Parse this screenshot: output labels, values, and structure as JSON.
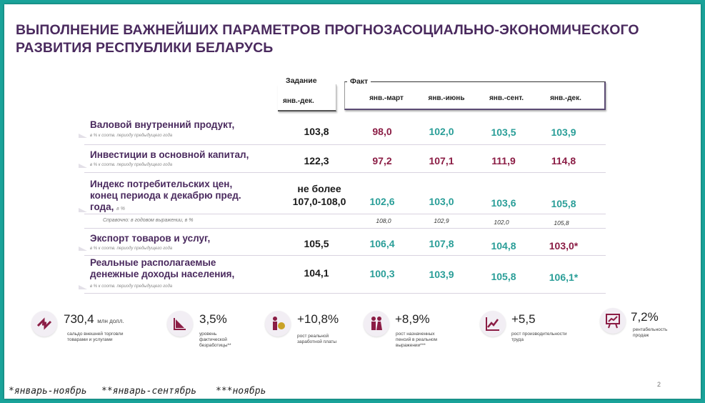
{
  "title": {
    "line1": "ВЫПОЛНЕНИЕ ВАЖНЕЙШИХ ПАРАМЕТРОВ ПРОГНОЗАСОЦИАЛЬНО-ЭКОНОМИЧЕСКОГО",
    "line2": "РАЗВИТИЯ РЕСПУБЛИКИ БЕЛАРУСЬ"
  },
  "header": {
    "task_label": "Задание",
    "task_period": "янв.-дек.",
    "fact_label": "Факт",
    "periods": [
      "янв.-март",
      "янв.-июнь",
      "янв.-сент.",
      "янв.-дек."
    ]
  },
  "rows": [
    {
      "title": "Валовой внутренний продукт,",
      "subtitle": "в % к соотв. периоду предыдущего года",
      "task": "103,8",
      "values": [
        "98,0",
        "102,0",
        "103,5",
        "103,9"
      ]
    },
    {
      "title": "Инвестиции в основной капитал,",
      "subtitle": "в % к соотв. периоду предыдущего года",
      "task": "122,3",
      "values": [
        "97,2",
        "107,1",
        "111,9",
        "114,8"
      ]
    },
    {
      "title_lines": [
        "Индекс потребительских цен,",
        "конец периода к декабрю пред.",
        "года,"
      ],
      "unit": "в %",
      "task_lines": [
        "не более",
        "107,0-108,0"
      ],
      "values": [
        "102,6",
        "103,0",
        "103,6",
        "105,8"
      ]
    },
    {
      "ref_label": "Справочно: в годовом выражении, в %",
      "values": [
        "108,0",
        "102,9",
        "102,0",
        "105,8"
      ]
    },
    {
      "title": "Экспорт товаров и услуг,",
      "subtitle": "в % к соотв. периоду предыдущего года",
      "task": "105,5",
      "values": [
        "106,4",
        "107,8",
        "104,8",
        "103,0*"
      ]
    },
    {
      "title_lines": [
        "Реальные располагаемые",
        "денежные доходы населения,"
      ],
      "subtitle": "в % к соотв. периоду предыдущего года",
      "task": "104,1",
      "values": [
        "100,3",
        "103,9",
        "105,8",
        "106,1*"
      ]
    }
  ],
  "kpis": [
    {
      "icon": "trade-arrows-icon",
      "value": "730,4",
      "unit": "млн долл.",
      "caption": [
        "сальдо внешней торговли",
        "товарами и услугами"
      ]
    },
    {
      "icon": "declining-chart-icon",
      "value": "3,5%",
      "caption": [
        "уровень",
        "фактической",
        "безработицы**"
      ]
    },
    {
      "icon": "person-coin-icon",
      "value": "+10,8%",
      "caption": [
        "рост реальной",
        "заработной платы"
      ]
    },
    {
      "icon": "elderly-couple-icon",
      "value": "+8,9%",
      "caption": [
        "рост назначенных",
        "пенсий в реальном",
        "выражении***"
      ]
    },
    {
      "icon": "line-chart-icon",
      "value": "+5,5",
      "caption": [
        "рост производительности",
        "труда"
      ]
    },
    {
      "icon": "presentation-chart-icon",
      "value": "7,2%",
      "caption": [
        "рентабельность",
        "продаж"
      ]
    }
  ],
  "footnotes": [
    "*январь-ноябрь",
    "**январь-сентябрь",
    "***ноябрь"
  ],
  "page_number": "2",
  "colors": {
    "title": "#4a2a5e",
    "maroon": "#8b1d45",
    "teal": "#2a9e98",
    "frame": "#1aa39a"
  }
}
